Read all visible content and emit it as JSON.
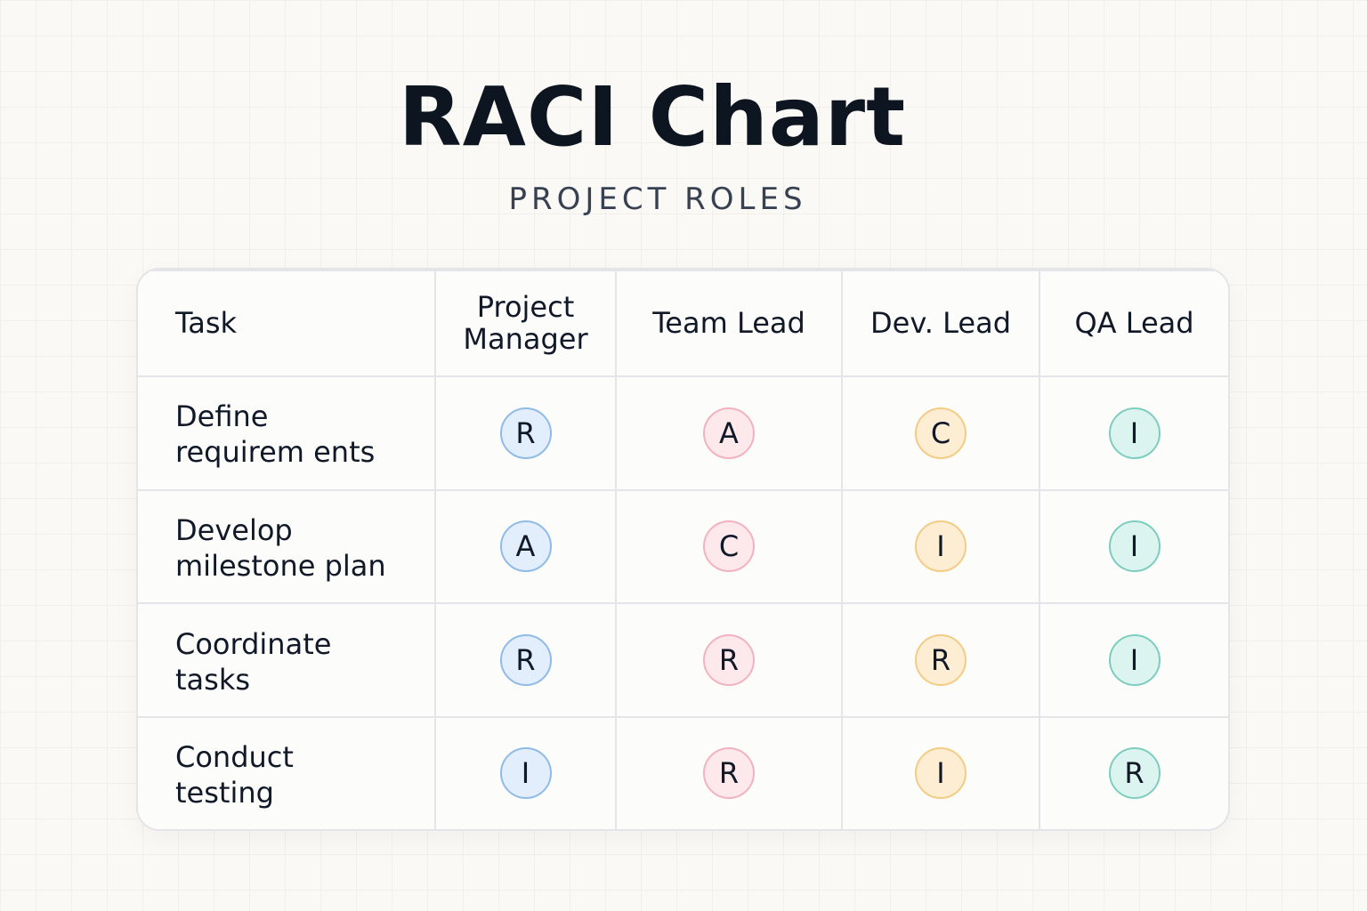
{
  "header": {
    "title": "RACI Chart",
    "subtitle": "PROJECT ROLES"
  },
  "table": {
    "columns": [
      "Task",
      "Project\nManager",
      "Team Lead",
      "Dev. Lead",
      "QA Lead"
    ],
    "rows": [
      [
        "Define\nrequirem ents",
        "R",
        "A",
        "C",
        "I"
      ],
      [
        "Develop\nmilestone plan",
        "A",
        "C",
        "I",
        "I"
      ],
      [
        "Coordinate\ntasks",
        "R",
        "R",
        "R",
        "I"
      ],
      [
        "Conduct\ntesting",
        "I",
        "R",
        "I",
        "R"
      ]
    ]
  }
}
